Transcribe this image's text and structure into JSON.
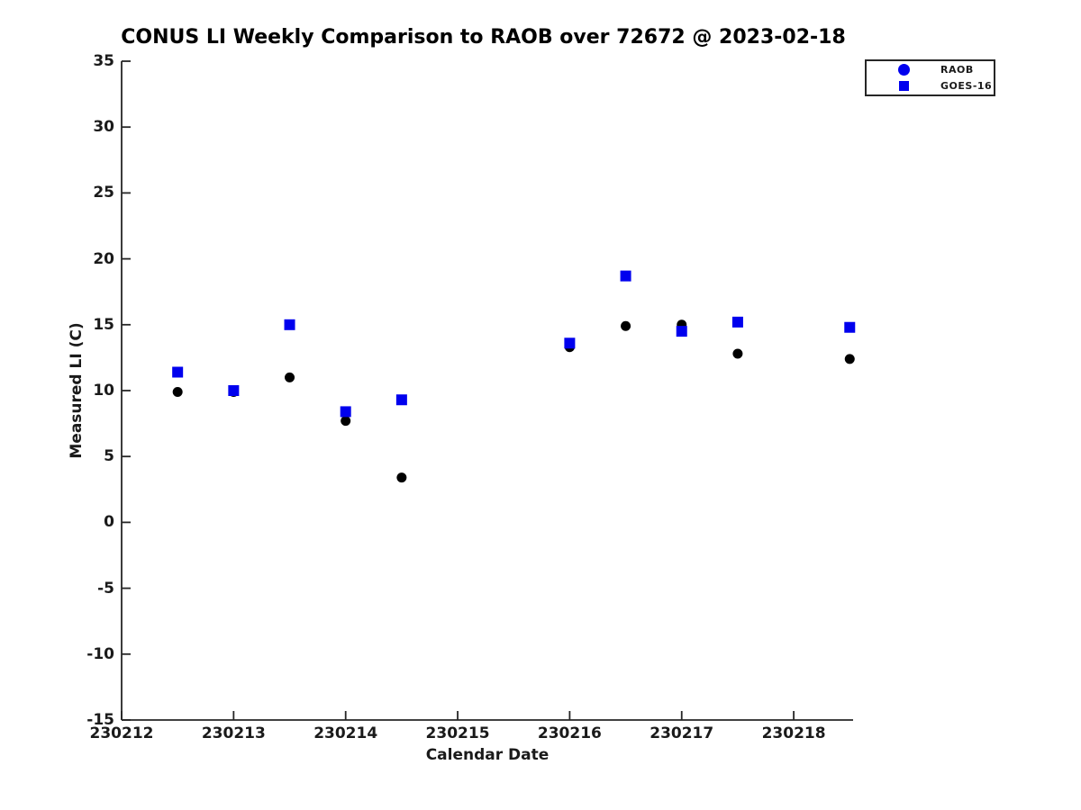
{
  "figure": {
    "background": "#ffffff",
    "axis_color": "#262626",
    "text_color": "#1a1a1a"
  },
  "chart_data": {
    "type": "scatter",
    "title": "CONUS LI Weekly Comparison to RAOB over 72672 @ 2023-02-18",
    "xlabel": "Calendar Date",
    "ylabel": "Measured LI (C)",
    "xlim": [
      230212,
      230218.53
    ],
    "ylim": [
      -15,
      35
    ],
    "x_ticks": [
      230212,
      230213,
      230214,
      230215,
      230216,
      230217,
      230218
    ],
    "y_ticks": [
      35,
      30,
      25,
      20,
      15,
      10,
      5,
      0,
      -5,
      -10,
      -15
    ],
    "grid": false,
    "legend": {
      "position": "top-right",
      "marker_color": "#0000ee",
      "entries": [
        {
          "label": "RAOB",
          "marker": "circle"
        },
        {
          "label": "GOES-16",
          "marker": "square"
        }
      ]
    },
    "series": [
      {
        "name": "RAOB",
        "marker": "circle",
        "color": "#000000",
        "x": [
          230212.5,
          230213.0,
          230213.5,
          230214.0,
          230214.5,
          230216.0,
          230216.5,
          230217.0,
          230217.5,
          230218.5
        ],
        "y": [
          9.9,
          9.9,
          11.0,
          7.7,
          3.4,
          13.3,
          14.9,
          15.0,
          12.8,
          12.4
        ]
      },
      {
        "name": "GOES-16",
        "marker": "square",
        "color": "#0000ee",
        "x": [
          230212.5,
          230213.0,
          230213.5,
          230214.0,
          230214.5,
          230216.0,
          230216.5,
          230217.0,
          230217.5,
          230218.5
        ],
        "y": [
          11.4,
          10.0,
          15.0,
          8.4,
          9.3,
          13.6,
          18.7,
          14.5,
          15.2,
          14.8
        ]
      }
    ]
  }
}
